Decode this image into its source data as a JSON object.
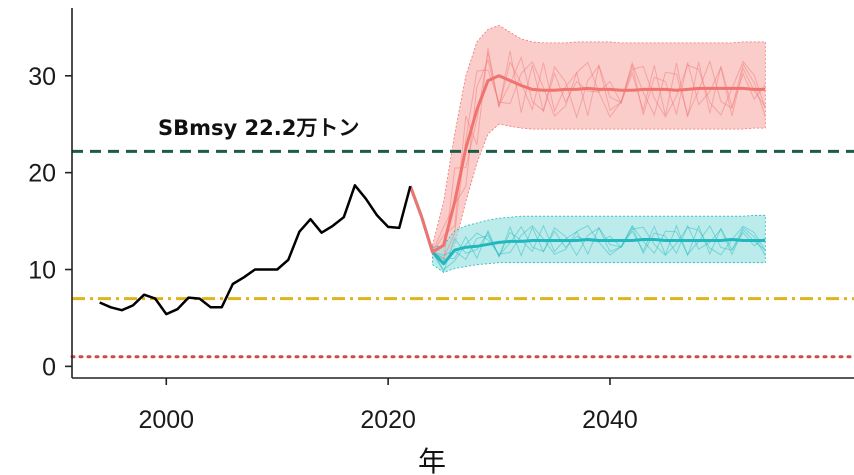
{
  "chart_data": {
    "type": "line",
    "title": "",
    "xlabel": "年",
    "ylabel": "",
    "xlim": [
      1991.5,
      2062
    ],
    "ylim": [
      -1.2,
      37
    ],
    "x_ticks": [
      2000,
      2020,
      2040
    ],
    "x_tick_labels": [
      "2000",
      "2020",
      "2040"
    ],
    "y_ticks": [
      0,
      10,
      20,
      30
    ],
    "y_tick_labels": [
      "0",
      "10",
      "20",
      "30"
    ],
    "grid": false,
    "legend": "none",
    "historical": {
      "color": "#000000",
      "x": [
        1994,
        1995,
        1996,
        1997,
        1998,
        1999,
        2000,
        2001,
        2002,
        2003,
        2004,
        2005,
        2006,
        2007,
        2008,
        2009,
        2010,
        2011,
        2012,
        2013,
        2014,
        2015,
        2016,
        2017,
        2018,
        2019,
        2020,
        2021,
        2022
      ],
      "y": [
        6.6,
        6.1,
        5.8,
        6.3,
        7.4,
        7.0,
        5.4,
        5.9,
        7.1,
        7.0,
        6.1,
        6.1,
        8.5,
        9.2,
        10.0,
        10.0,
        10.0,
        11.0,
        13.9,
        15.2,
        13.8,
        14.5,
        15.4,
        18.7,
        17.3,
        15.6,
        14.4,
        14.3,
        18.6
      ]
    },
    "projections": [
      {
        "color": "#f0736f",
        "band_color": "#f8b6b3",
        "x": [
          2022,
          2023,
          2024,
          2025,
          2026,
          2027,
          2028,
          2029,
          2030,
          2031,
          2032,
          2033,
          2034,
          2035,
          2036,
          2037,
          2038,
          2039,
          2040,
          2041,
          2042,
          2043,
          2044,
          2045,
          2046,
          2047,
          2048,
          2049,
          2050,
          2051,
          2052,
          2053,
          2054
        ],
        "y": [
          18.6,
          15.5,
          11.8,
          12.5,
          17.0,
          22.5,
          26.5,
          29.5,
          30.0,
          29.5,
          29.0,
          28.6,
          28.5,
          28.5,
          28.6,
          28.6,
          28.7,
          28.6,
          28.6,
          28.5,
          28.5,
          28.6,
          28.6,
          28.6,
          28.5,
          28.6,
          28.7,
          28.7,
          28.7,
          28.7,
          28.7,
          28.6,
          28.6
        ],
        "upper": [
          18.6,
          15.5,
          12.5,
          17.0,
          24.0,
          30.0,
          33.5,
          34.8,
          35.2,
          34.5,
          33.8,
          33.5,
          33.4,
          33.4,
          33.4,
          33.5,
          33.5,
          33.5,
          33.5,
          33.4,
          33.4,
          33.4,
          33.4,
          33.4,
          33.4,
          33.4,
          33.4,
          33.4,
          33.4,
          33.4,
          33.5,
          33.5,
          33.5
        ],
        "lower": [
          18.6,
          15.5,
          11.2,
          11.0,
          12.5,
          17.0,
          21.0,
          24.0,
          25.0,
          24.8,
          24.6,
          24.5,
          24.5,
          24.5,
          24.5,
          24.5,
          24.5,
          24.5,
          24.5,
          24.5,
          24.5,
          24.5,
          24.5,
          24.5,
          24.5,
          24.5,
          24.5,
          24.5,
          24.5,
          24.5,
          24.5,
          24.6,
          24.6
        ]
      },
      {
        "color": "#20b8bc",
        "band_color": "#9fe3e4",
        "x": [
          2022,
          2023,
          2024,
          2025,
          2026,
          2027,
          2028,
          2029,
          2030,
          2031,
          2032,
          2033,
          2034,
          2035,
          2036,
          2037,
          2038,
          2039,
          2040,
          2041,
          2042,
          2043,
          2044,
          2045,
          2046,
          2047,
          2048,
          2049,
          2050,
          2051,
          2052,
          2053,
          2054
        ],
        "y": [
          18.6,
          15.5,
          11.8,
          10.6,
          12.0,
          12.3,
          12.4,
          12.6,
          12.8,
          12.9,
          12.9,
          13.0,
          13.0,
          13.0,
          13.0,
          13.0,
          13.1,
          13.0,
          13.0,
          13.0,
          13.0,
          13.1,
          13.1,
          13.0,
          13.0,
          13.0,
          13.0,
          13.0,
          13.0,
          13.1,
          13.0,
          13.0,
          13.0
        ],
        "upper": [
          18.6,
          15.5,
          12.3,
          12.5,
          14.0,
          14.5,
          14.8,
          15.1,
          15.3,
          15.4,
          15.5,
          15.5,
          15.5,
          15.5,
          15.5,
          15.5,
          15.5,
          15.5,
          15.5,
          15.5,
          15.5,
          15.5,
          15.5,
          15.5,
          15.5,
          15.5,
          15.5,
          15.5,
          15.5,
          15.5,
          15.5,
          15.6,
          15.6
        ],
        "lower": [
          18.6,
          15.5,
          10.5,
          9.7,
          10.1,
          10.3,
          10.5,
          10.6,
          10.7,
          10.7,
          10.7,
          10.7,
          10.7,
          10.7,
          10.7,
          10.7,
          10.7,
          10.7,
          10.7,
          10.7,
          10.7,
          10.7,
          10.7,
          10.7,
          10.7,
          10.7,
          10.7,
          10.7,
          10.7,
          10.7,
          10.7,
          10.7,
          10.7
        ]
      }
    ],
    "reference_lines": [
      {
        "y": 22.2,
        "color": "#1a5e4a",
        "style": "dashed",
        "label": "SBmsy 22.2万トン"
      },
      {
        "y": 7.0,
        "color": "#e0b41c",
        "style": "dashdot",
        "label": ""
      },
      {
        "y": 1.0,
        "color": "#cc4b4b",
        "style": "dotted",
        "label": ""
      }
    ]
  }
}
